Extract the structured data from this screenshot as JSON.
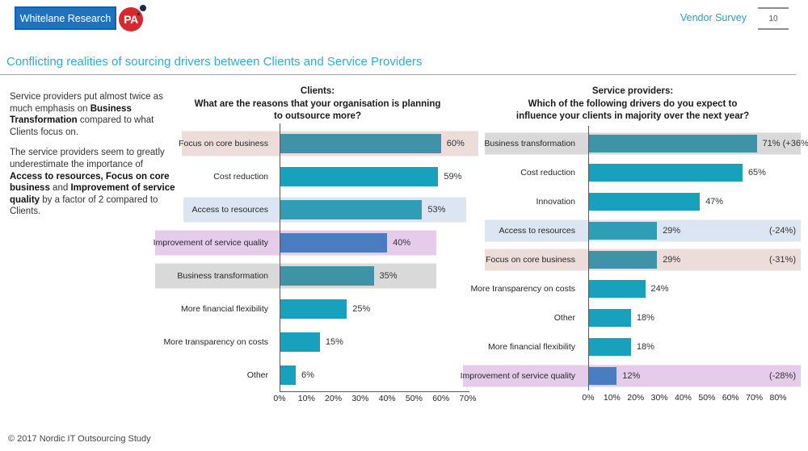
{
  "header": {
    "logo_text": "Whitelane Research",
    "pa_logo_text": "PA",
    "survey_label": "Vendor Survey",
    "page_number": "10"
  },
  "title": "Conflicting realities of sourcing drivers between Clients and Service Providers",
  "commentary": {
    "p1": [
      {
        "text": "Service providers put almost twice as much emphasis on ",
        "bold": false
      },
      {
        "text": "Business Transformation",
        "bold": true
      },
      {
        "text": " compared to what Clients focus on.",
        "bold": false
      }
    ],
    "p2": [
      {
        "text": "The service providers seem to greatly underestimate the importance of ",
        "bold": false
      },
      {
        "text": "Access to resources, Focus on core business",
        "bold": true
      },
      {
        "text": " and ",
        "bold": false
      },
      {
        "text": "Improvement of service quality",
        "bold": true
      },
      {
        "text": " by a factor of 2 compared to Clients.",
        "bold": false
      }
    ]
  },
  "colors": {
    "bars": {
      "teal": "#17A1BD",
      "teal_dark": "#3F93A6",
      "teal_mid": "#2F9DB5",
      "blue": "#4A7DC0"
    },
    "bands": {
      "pink": "#ECDDDA",
      "blue": "#DCE6F2",
      "lavender": "#E5CCEB",
      "gray": "#D9D9D9"
    },
    "accent_title": "#2FADD0",
    "logo_blue": "#1F73BE",
    "logo_red": "#D7282F"
  },
  "chart_data": [
    {
      "type": "bar",
      "orientation": "horizontal",
      "title_lines": [
        "Clients:",
        "What are the reasons that your organisation is planning",
        "to outsource more?"
      ],
      "title": "Clients: What are the reasons that your organisation is planning to outsource more?",
      "xlabel": "",
      "ylabel": "",
      "axis_max": 70,
      "xlim": [
        0,
        70
      ],
      "grid": false,
      "ticks": [
        "0%",
        "10%",
        "20%",
        "30%",
        "40%",
        "50%",
        "60%",
        "70%"
      ],
      "rows": [
        {
          "label": "Focus on core business",
          "value": 60,
          "value_label": "60%",
          "delta": "",
          "band": "pink",
          "bar": "teal_dark",
          "band_left": 35,
          "band_width": 367
        },
        {
          "label": "Cost reduction",
          "value": 59,
          "value_label": "59%",
          "delta": "",
          "band": null,
          "bar": "teal"
        },
        {
          "label": "Access to resources",
          "value": 53,
          "value_label": "53%",
          "delta": "",
          "band": "blue",
          "bar": "teal_mid",
          "band_left": 37,
          "band_width": 350
        },
        {
          "label": "Improvement of service quality",
          "value": 40,
          "value_label": "40%",
          "delta": "",
          "band": "lavender",
          "bar": "blue",
          "band_left": 2,
          "band_width": 348
        },
        {
          "label": "Business transformation",
          "value": 35,
          "value_label": "35%",
          "delta": "",
          "band": "gray",
          "bar": "teal_dark",
          "band_left": 2,
          "band_width": 348
        },
        {
          "label": "More financial flexibility",
          "value": 25,
          "value_label": "25%",
          "delta": "",
          "band": null,
          "bar": "teal"
        },
        {
          "label": "More transparency on costs",
          "value": 15,
          "value_label": "15%",
          "delta": "",
          "band": null,
          "bar": "teal"
        },
        {
          "label": "Other",
          "value": 6,
          "value_label": "6%",
          "delta": "",
          "band": null,
          "bar": "teal"
        }
      ]
    },
    {
      "type": "bar",
      "orientation": "horizontal",
      "title_lines": [
        "Service providers:",
        "Which of the following drivers do you expect to",
        "influence your clients in majority over the next year?"
      ],
      "title": "Service providers: Which of the following drivers do you expect to influence your clients in majority over the next year?",
      "xlabel": "",
      "ylabel": "",
      "axis_max": 80,
      "xlim": [
        0,
        80
      ],
      "grid": false,
      "ticks": [
        "0%",
        "10%",
        "20%",
        "30%",
        "40%",
        "50%",
        "60%",
        "70%",
        "80%"
      ],
      "rows": [
        {
          "label": "Business transformation",
          "value": 71,
          "value_label": "71% (+36%)",
          "delta": "",
          "band": "gray",
          "bar": "teal_dark",
          "band_left": 27,
          "band_width": 391
        },
        {
          "label": "Cost reduction",
          "value": 65,
          "value_label": "65%",
          "delta": "",
          "band": null,
          "bar": "teal"
        },
        {
          "label": "Innovation",
          "value": 47,
          "value_label": "47%",
          "delta": "",
          "band": null,
          "bar": "teal"
        },
        {
          "label": "Access to resources",
          "value": 29,
          "value_label": "29%",
          "delta": "(-24%)",
          "band": "blue",
          "bar": "teal_mid",
          "band_left": 27,
          "band_width": 391
        },
        {
          "label": "Focus on core business",
          "value": 29,
          "value_label": "29%",
          "delta": "(-31%)",
          "band": "pink",
          "bar": "teal_dark",
          "band_left": 27,
          "band_width": 391
        },
        {
          "label": "More transparency on costs",
          "value": 24,
          "value_label": "24%",
          "delta": "",
          "band": null,
          "bar": "teal"
        },
        {
          "label": "Other",
          "value": 18,
          "value_label": "18%",
          "delta": "",
          "band": null,
          "bar": "teal"
        },
        {
          "label": "More financial flexibility",
          "value": 18,
          "value_label": "18%",
          "delta": "",
          "band": null,
          "bar": "teal"
        },
        {
          "label": "Improvement of service quality",
          "value": 12,
          "value_label": "12%",
          "delta": "(-28%)",
          "band": "lavender",
          "bar": "blue",
          "band_left": 0,
          "band_width": 418
        }
      ]
    }
  ],
  "footer": {
    "text": "© 2017 Nordic IT Outsourcing Study"
  }
}
